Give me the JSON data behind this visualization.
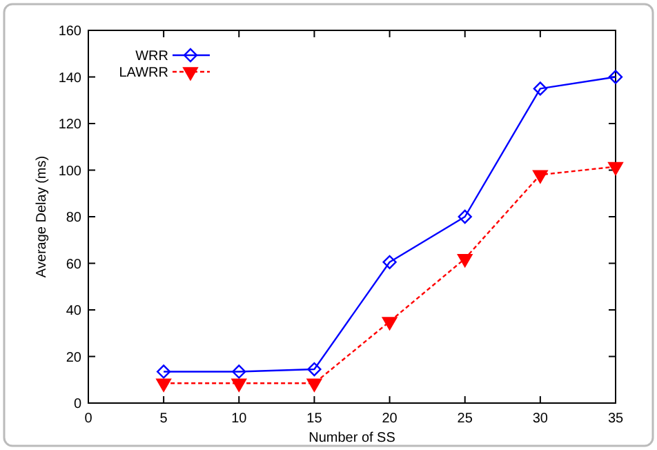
{
  "chart_data": {
    "type": "line",
    "xlabel": "Number of SS",
    "ylabel": "Average Delay (ms)",
    "x": [
      5,
      10,
      15,
      20,
      25,
      30,
      35
    ],
    "series": [
      {
        "name": "WRR",
        "color": "#0000ff",
        "values": [
          13.5,
          13.5,
          14.5,
          60.5,
          80,
          135,
          140
        ],
        "marker": "diamond",
        "line_style": "solid"
      },
      {
        "name": "LAWRR",
        "color": "#ff0000",
        "values": [
          8.5,
          8.5,
          8.5,
          35,
          62,
          98,
          101.5
        ],
        "marker": "triangle",
        "line_style": "dashed"
      }
    ],
    "xlim": [
      0,
      35
    ],
    "xticks": [
      0,
      5,
      10,
      15,
      20,
      25,
      30,
      35
    ],
    "ylim": [
      0,
      160
    ],
    "yticks": [
      0,
      20,
      40,
      60,
      80,
      100,
      120,
      140,
      160
    ],
    "grid": false,
    "legend": "top left"
  }
}
